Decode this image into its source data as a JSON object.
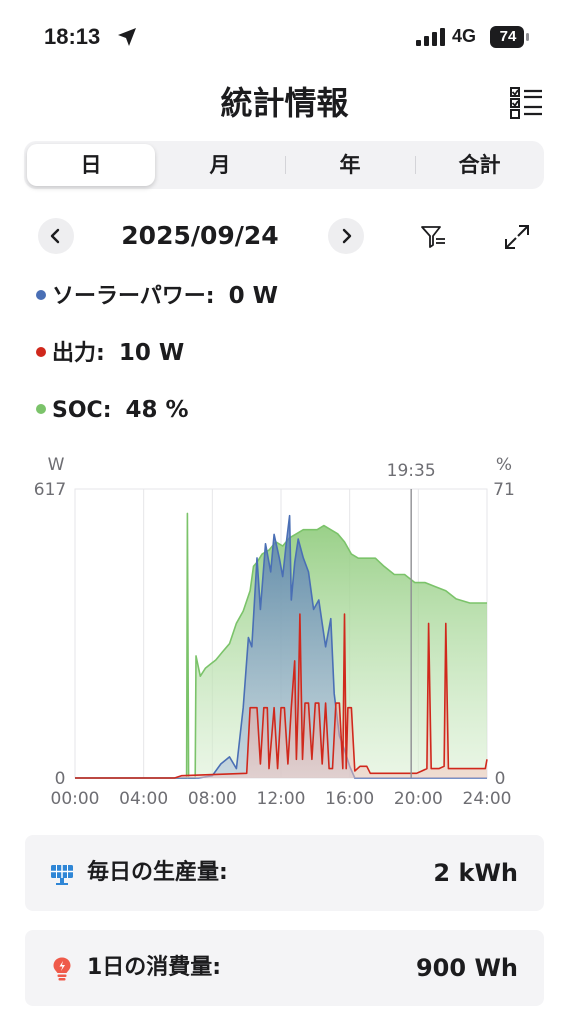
{
  "status_bar": {
    "time": "18:13",
    "network": "4G",
    "battery": "74"
  },
  "header": {
    "title": "統計情報"
  },
  "tabs": [
    {
      "label": "日",
      "active": true
    },
    {
      "label": "月",
      "active": false
    },
    {
      "label": "年",
      "active": false
    },
    {
      "label": "合計",
      "active": false
    }
  ],
  "date_nav": {
    "date": "2025/09/24"
  },
  "legend": {
    "solar": {
      "label": "ソーラーパワー:",
      "value": "0 W",
      "color": "#4a6fb5"
    },
    "output": {
      "label": "出力:",
      "value": "10 W",
      "color": "#d0281c"
    },
    "soc": {
      "label": "SOC:",
      "value": "48 %",
      "color": "#7bc36a"
    }
  },
  "chart_data": {
    "type": "area",
    "left_axis_unit": "W",
    "right_axis_unit": "%",
    "left_ylim": [
      0,
      617
    ],
    "right_ylim": [
      0,
      71
    ],
    "left_ticks": [
      "617",
      "0"
    ],
    "right_ticks": [
      "71",
      "0"
    ],
    "x_ticks": [
      "00:00",
      "04:00",
      "08:00",
      "12:00",
      "16:00",
      "20:00",
      "24:00"
    ],
    "cursor": {
      "time": "19:35",
      "hour": 19.583
    },
    "grid": "vertical",
    "series": [
      {
        "name": "ソーラーパワー",
        "color": "#4a6fb5",
        "axis": "left",
        "points": [
          [
            0,
            0
          ],
          [
            7.2,
            0
          ],
          [
            8.0,
            5
          ],
          [
            8.5,
            30
          ],
          [
            9.0,
            45
          ],
          [
            9.4,
            20
          ],
          [
            9.8,
            150
          ],
          [
            10.1,
            300
          ],
          [
            10.3,
            280
          ],
          [
            10.6,
            470
          ],
          [
            10.8,
            360
          ],
          [
            11.1,
            500
          ],
          [
            11.4,
            440
          ],
          [
            11.6,
            520
          ],
          [
            11.9,
            470
          ],
          [
            12.1,
            430
          ],
          [
            12.3,
            500
          ],
          [
            12.5,
            560
          ],
          [
            12.6,
            380
          ],
          [
            12.8,
            460
          ],
          [
            13.0,
            510
          ],
          [
            13.3,
            470
          ],
          [
            13.6,
            440
          ],
          [
            13.9,
            360
          ],
          [
            14.2,
            380
          ],
          [
            14.6,
            280
          ],
          [
            14.9,
            340
          ],
          [
            15.1,
            180
          ],
          [
            15.4,
            90
          ],
          [
            15.7,
            60
          ],
          [
            16.0,
            25
          ],
          [
            16.3,
            0
          ],
          [
            24,
            0
          ]
        ]
      },
      {
        "name": "出力",
        "color": "#d0281c",
        "axis": "left",
        "points": [
          [
            0,
            0
          ],
          [
            5.8,
            0
          ],
          [
            6.2,
            5
          ],
          [
            10.0,
            10
          ],
          [
            10.2,
            150
          ],
          [
            10.6,
            150
          ],
          [
            10.8,
            30
          ],
          [
            11.0,
            150
          ],
          [
            11.2,
            150
          ],
          [
            11.3,
            20
          ],
          [
            11.6,
            150
          ],
          [
            11.8,
            20
          ],
          [
            12.0,
            150
          ],
          [
            12.2,
            150
          ],
          [
            12.4,
            30
          ],
          [
            12.6,
            150
          ],
          [
            12.8,
            250
          ],
          [
            12.9,
            40
          ],
          [
            13.0,
            160
          ],
          [
            13.1,
            350
          ],
          [
            13.25,
            40
          ],
          [
            13.4,
            160
          ],
          [
            13.6,
            160
          ],
          [
            13.8,
            40
          ],
          [
            14.0,
            160
          ],
          [
            14.2,
            160
          ],
          [
            14.4,
            30
          ],
          [
            14.6,
            160
          ],
          [
            14.8,
            20
          ],
          [
            15.0,
            20
          ],
          [
            15.2,
            160
          ],
          [
            15.4,
            160
          ],
          [
            15.6,
            20
          ],
          [
            15.7,
            350
          ],
          [
            15.8,
            20
          ],
          [
            15.9,
            150
          ],
          [
            16.1,
            150
          ],
          [
            16.3,
            15
          ],
          [
            16.6,
            25
          ],
          [
            17.0,
            25
          ],
          [
            17.2,
            10
          ],
          [
            19.9,
            10
          ],
          [
            20.2,
            15
          ],
          [
            20.5,
            20
          ],
          [
            20.6,
            330
          ],
          [
            20.75,
            20
          ],
          [
            21.2,
            20
          ],
          [
            21.5,
            25
          ],
          [
            21.6,
            330
          ],
          [
            21.75,
            20
          ],
          [
            23.9,
            20
          ],
          [
            24,
            40
          ]
        ]
      },
      {
        "name": "SOC",
        "color": "#7bc36a",
        "axis": "right",
        "points": [
          [
            0,
            0
          ],
          [
            6.5,
            0
          ],
          [
            6.55,
            65
          ],
          [
            6.62,
            0
          ],
          [
            7.0,
            0
          ],
          [
            7.05,
            30
          ],
          [
            7.3,
            25
          ],
          [
            7.6,
            27
          ],
          [
            7.9,
            28
          ],
          [
            8.2,
            29
          ],
          [
            8.6,
            31
          ],
          [
            9.0,
            33
          ],
          [
            9.4,
            38
          ],
          [
            9.8,
            41
          ],
          [
            10.2,
            46
          ],
          [
            10.4,
            52
          ],
          [
            10.6,
            53
          ],
          [
            10.9,
            55
          ],
          [
            11.3,
            56
          ],
          [
            11.7,
            58
          ],
          [
            12.1,
            57
          ],
          [
            12.5,
            59
          ],
          [
            12.9,
            60
          ],
          [
            13.3,
            61
          ],
          [
            13.7,
            61
          ],
          [
            14.1,
            61
          ],
          [
            14.5,
            62
          ],
          [
            14.9,
            61
          ],
          [
            15.3,
            60
          ],
          [
            15.7,
            58
          ],
          [
            16.1,
            55
          ],
          [
            16.5,
            54
          ],
          [
            17.0,
            54
          ],
          [
            17.5,
            54
          ],
          [
            18.0,
            52
          ],
          [
            18.6,
            50
          ],
          [
            19.2,
            50
          ],
          [
            19.8,
            48
          ],
          [
            20.4,
            48
          ],
          [
            21.0,
            47
          ],
          [
            21.6,
            46
          ],
          [
            22.2,
            44
          ],
          [
            23.0,
            43
          ],
          [
            24,
            43
          ]
        ]
      }
    ]
  },
  "summary": {
    "production": {
      "label": "毎日の生産量:",
      "value": "2 kWh"
    },
    "consumption": {
      "label": "1日の消費量:",
      "value": "900 Wh"
    }
  }
}
